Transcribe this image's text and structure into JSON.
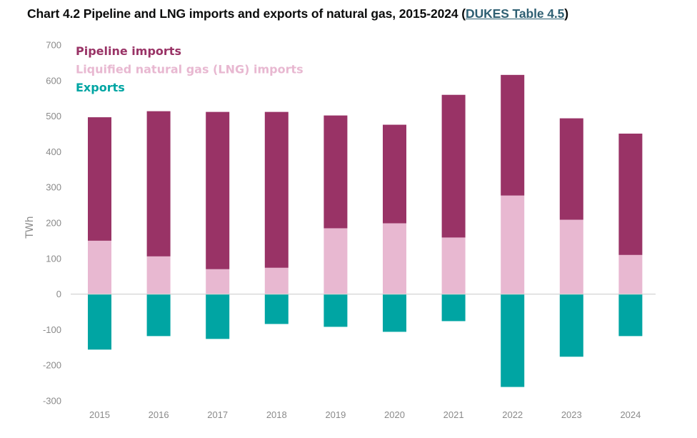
{
  "header": {
    "title_prefix": "Chart 4.2 Pipeline and LNG imports and exports of natural gas, 2015-2024 (",
    "link_text": "DUKES Table 4.5",
    "title_suffix": ")"
  },
  "chart_data": {
    "type": "bar",
    "stacked": true,
    "title": "Chart 4.2 Pipeline and LNG imports and exports of natural gas, 2015-2024",
    "xlabel": "",
    "ylabel": "TWh",
    "ylim": [
      -300,
      700
    ],
    "yticks": [
      700,
      600,
      500,
      400,
      300,
      200,
      100,
      0,
      -100,
      -200,
      -300
    ],
    "grid": false,
    "legend_position": "top-left",
    "categories": [
      "2015",
      "2016",
      "2017",
      "2018",
      "2019",
      "2020",
      "2021",
      "2022",
      "2023",
      "2024"
    ],
    "series": [
      {
        "name": "Liquified natural gas (LNG) imports",
        "color": "#e8b8d1",
        "values": [
          150,
          106,
          70,
          74,
          185,
          199,
          159,
          277,
          209,
          110
        ]
      },
      {
        "name": "Pipeline imports",
        "color": "#993366",
        "values": [
          347,
          408,
          442,
          438,
          317,
          277,
          401,
          339,
          285,
          341
        ]
      },
      {
        "name": "Exports",
        "color": "#00a5a3",
        "values": [
          -156,
          -118,
          -126,
          -84,
          -92,
          -106,
          -76,
          -261,
          -176,
          -118
        ]
      }
    ],
    "legend": [
      {
        "label": "Pipeline imports",
        "color": "#993366"
      },
      {
        "label": "Liquified natural gas (LNG) imports",
        "color": "#e8b8d1"
      },
      {
        "label": "Exports",
        "color": "#00a5a3"
      }
    ]
  }
}
